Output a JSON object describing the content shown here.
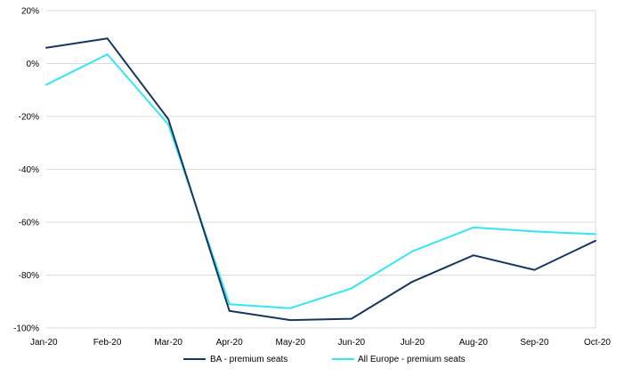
{
  "chart_data": {
    "type": "line",
    "title": "",
    "xlabel": "",
    "ylabel": "",
    "categories": [
      "Jan-20",
      "Feb-20",
      "Mar-20",
      "Apr-20",
      "May-20",
      "Jun-20",
      "Jul-20",
      "Aug-20",
      "Sep-20",
      "Oct-20"
    ],
    "y_ticks": [
      "20%",
      "0%",
      "-20%",
      "-40%",
      "-60%",
      "-80%",
      "-100%"
    ],
    "ylim": [
      -100,
      20
    ],
    "y_unit": "%",
    "grid": true,
    "legend_position": "bottom",
    "series": [
      {
        "name": "BA - premium seats",
        "color": "#17375e",
        "values": [
          6,
          9.5,
          -21,
          -93.5,
          -97,
          -96.5,
          -82.5,
          -72.5,
          -78,
          -67
        ]
      },
      {
        "name": "All Europe - premium seats",
        "color": "#33e6f2",
        "values": [
          -8,
          3.5,
          -23,
          -91,
          -92.5,
          -85,
          -71,
          -62,
          -63.5,
          -64.5
        ]
      }
    ]
  }
}
